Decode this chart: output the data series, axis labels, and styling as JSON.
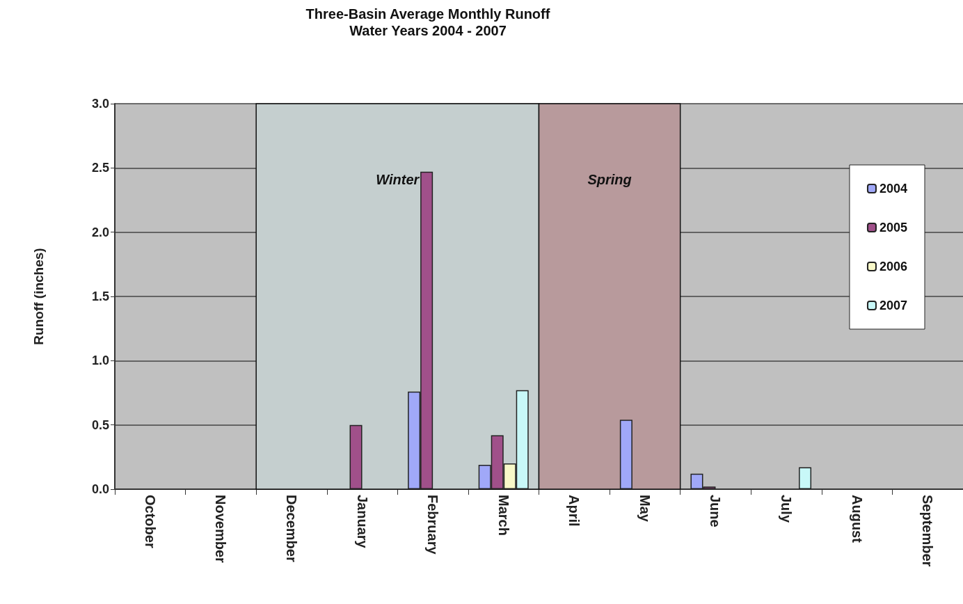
{
  "chart_data": {
    "type": "bar",
    "title": "Three-Basin Average Monthly Runoff",
    "subtitle": "Water Years 2004 - 2007",
    "ylabel": "Runoff (inches)",
    "categories": [
      "October",
      "November",
      "December",
      "January",
      "February",
      "March",
      "April",
      "May",
      "June",
      "July",
      "August",
      "September"
    ],
    "series": [
      {
        "name": "2004",
        "color": "#a0a8f8",
        "values": [
          null,
          null,
          null,
          null,
          0.76,
          0.19,
          null,
          0.54,
          0.12,
          null,
          null,
          null
        ]
      },
      {
        "name": "2005",
        "color": "#a0508a",
        "values": [
          null,
          null,
          null,
          0.5,
          2.47,
          0.42,
          null,
          null,
          0.02,
          null,
          null,
          null
        ]
      },
      {
        "name": "2006",
        "color": "#f8f8c8",
        "values": [
          null,
          null,
          null,
          null,
          null,
          0.2,
          null,
          null,
          null,
          null,
          null,
          null
        ]
      },
      {
        "name": "2007",
        "color": "#c8f8f8",
        "values": [
          null,
          null,
          null,
          null,
          null,
          0.77,
          null,
          null,
          null,
          0.17,
          null,
          null
        ]
      }
    ],
    "ylim": [
      0,
      3
    ],
    "yticks": [
      {
        "value": 0,
        "label": "0.0"
      },
      {
        "value": 0.5,
        "label": "0.5"
      },
      {
        "value": 1,
        "label": "1.0"
      },
      {
        "value": 1.5,
        "label": "1.5"
      },
      {
        "value": 2,
        "label": "2.0"
      },
      {
        "value": 2.5,
        "label": "2.5"
      },
      {
        "value": 3,
        "label": "3.0"
      }
    ],
    "bands": [
      {
        "axis": "x",
        "from": "December",
        "to": "March",
        "label": "Winter",
        "color": "#c5cfcf"
      },
      {
        "axis": "x",
        "from": "April",
        "to": "May",
        "label": "Spring",
        "color": "#b89a9c"
      }
    ],
    "grid": "y",
    "legend": "top right"
  }
}
